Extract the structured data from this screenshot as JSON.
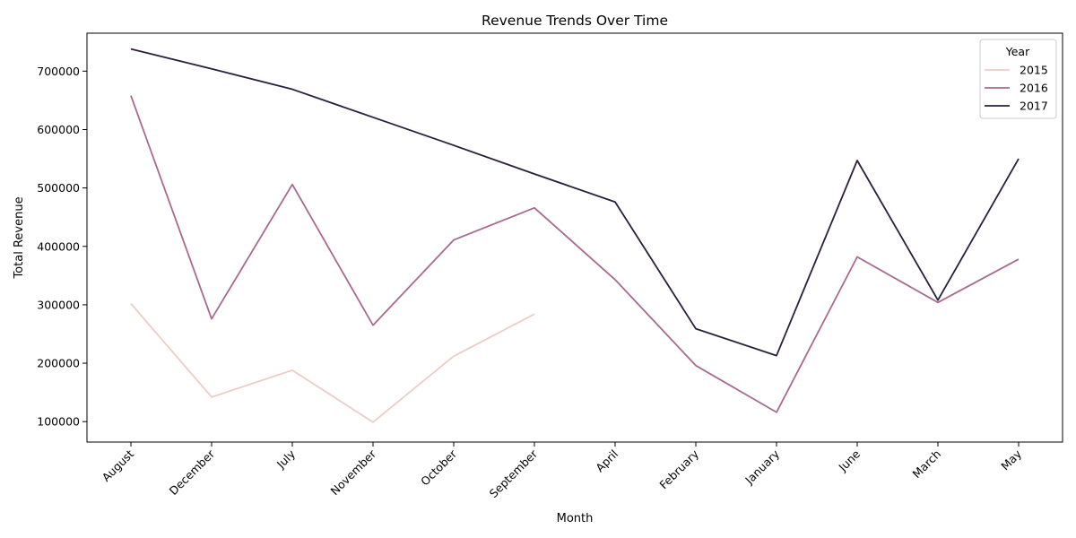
{
  "chart_data": {
    "type": "line",
    "title": "Revenue Trends Over Time",
    "xlabel": "Month",
    "ylabel": "Total Revenue",
    "categories": [
      "August",
      "December",
      "July",
      "November",
      "October",
      "September",
      "April",
      "February",
      "January",
      "June",
      "March",
      "May"
    ],
    "ylim": [
      65000,
      765000
    ],
    "yticks": [
      100000,
      200000,
      300000,
      400000,
      500000,
      600000,
      700000
    ],
    "ytick_labels": [
      "100000",
      "200000",
      "300000",
      "400000",
      "500000",
      "600000",
      "700000"
    ],
    "legend": {
      "title": "Year",
      "placement": "top-right"
    },
    "grid": false,
    "series": [
      {
        "name": "2015",
        "color": "#ebcdc6",
        "values": [
          302000,
          142000,
          188000,
          99000,
          212000,
          284000,
          null,
          null,
          null,
          null,
          null,
          null
        ]
      },
      {
        "name": "2016",
        "color": "#a86a8f",
        "values": [
          658000,
          276000,
          506000,
          265000,
          411000,
          466000,
          343000,
          196000,
          116000,
          382000,
          304000,
          378000
        ]
      },
      {
        "name": "2017",
        "color": "#2b1f3c",
        "values": [
          738000,
          704000,
          669000,
          621000,
          573000,
          524000,
          476000,
          259000,
          213000,
          547000,
          308000,
          550000
        ]
      }
    ]
  }
}
